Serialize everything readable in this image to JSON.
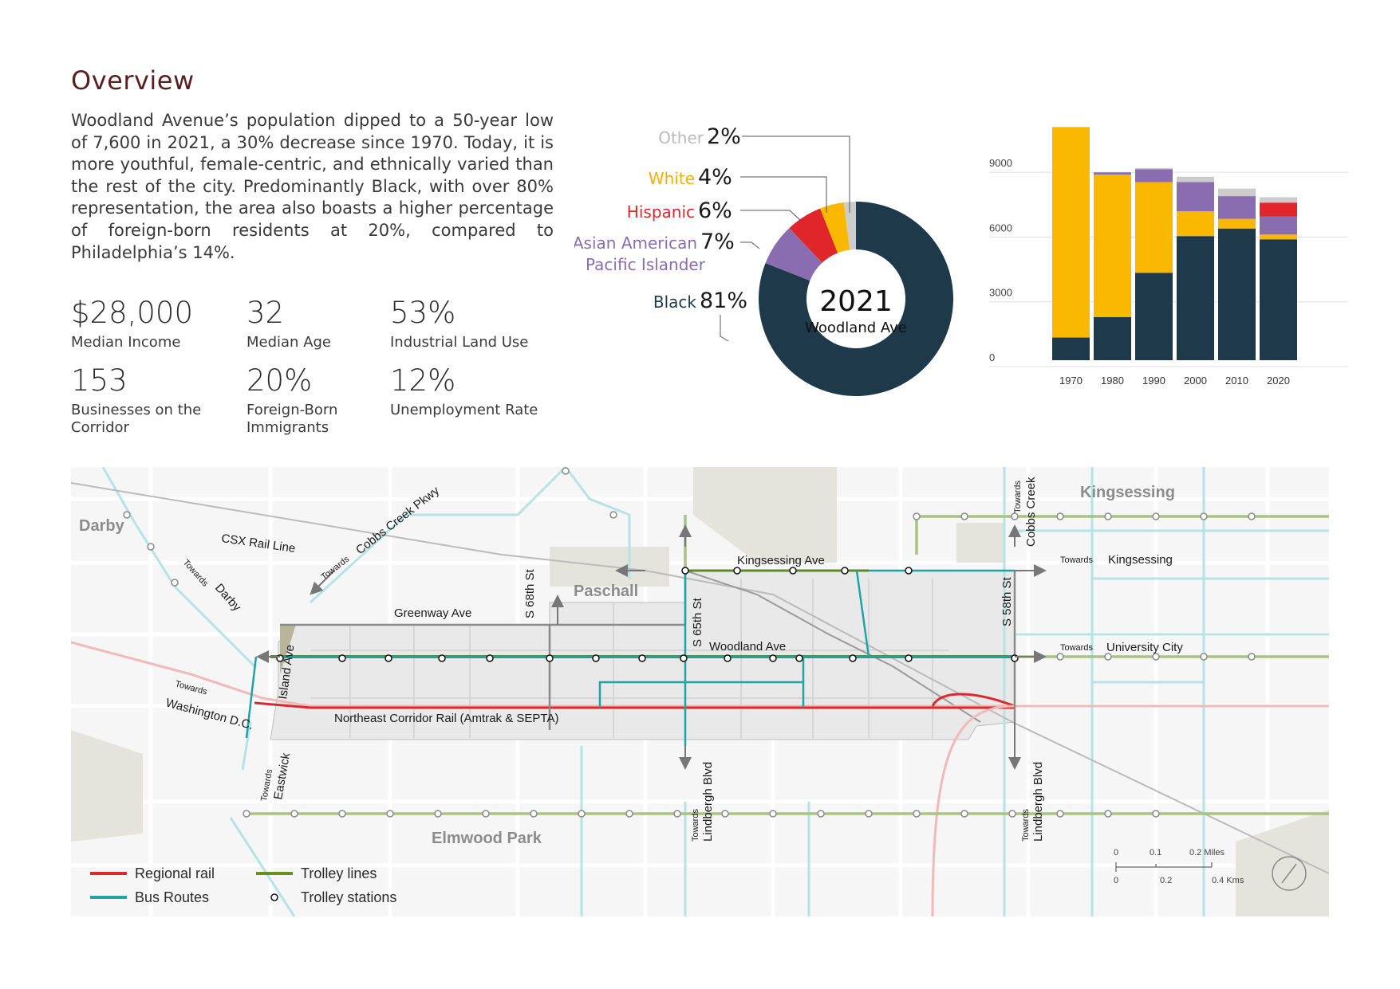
{
  "overview": {
    "title": "Overview",
    "body": "Woodland Avenue’s population dipped to a 50-year low of 7,600 in 2021, a 30% decrease since 1970. Today, it is more youthful, female-centric, and ethnically varied than the rest of the city. Predominantly Black, with over 80% representation, the area also boasts a higher percentage of foreign-born residents at 20%, compared to Philadelphia’s 14%."
  },
  "stats": [
    {
      "value": "$28,000",
      "label": "Median Income"
    },
    {
      "value": "32",
      "label": "Median Age"
    },
    {
      "value": "53%",
      "label": "Industrial Land Use"
    },
    {
      "value": "153",
      "label": "Businesses on the Corridor"
    },
    {
      "value": "20%",
      "label": "Foreign-Born Immigrants"
    },
    {
      "value": "12%",
      "label": "Unemployment Rate"
    }
  ],
  "donut": {
    "center_year": "2021",
    "center_label": "Woodland Ave",
    "slices": [
      {
        "name": "Black",
        "pct_label": "81%",
        "value": 81,
        "color": "#1e3a4a"
      },
      {
        "name": "Asian American Pacific Islander",
        "name_line1": "Asian American",
        "name_line2": "Pacific Islander",
        "pct_label": "7%",
        "value": 7,
        "color": "#8a6db0"
      },
      {
        "name": "Hispanic",
        "pct_label": "6%",
        "value": 6,
        "color": "#e0262b"
      },
      {
        "name": "White",
        "pct_label": "4%",
        "value": 4,
        "color": "#fbb800"
      },
      {
        "name": "Other",
        "pct_label": "2%",
        "value": 2,
        "color": "#cccccc"
      }
    ]
  },
  "chart_data": {
    "type": "bar",
    "stacked": true,
    "categories": [
      "1970",
      "1980",
      "1990",
      "2000",
      "2010",
      "2020"
    ],
    "yticks": [
      "0",
      "3000",
      "6000",
      "9000"
    ],
    "ylim": [
      0,
      11000
    ],
    "grid": true,
    "series": [
      {
        "key": "black",
        "values": [
          1050,
          2000,
          4050,
          5750,
          6100,
          5600
        ],
        "color": "#1e3a4a"
      },
      {
        "key": "white",
        "values": [
          9750,
          6600,
          4200,
          1150,
          450,
          220
        ],
        "color": "#fbb800"
      },
      {
        "key": "aapi",
        "values": [
          0,
          100,
          600,
          1350,
          1050,
          830
        ],
        "color": "#8a6db0"
      },
      {
        "key": "hispanic",
        "values": [
          0,
          0,
          0,
          0,
          0,
          650
        ],
        "color": "#e0262b"
      },
      {
        "key": "other",
        "values": [
          0,
          0,
          50,
          250,
          350,
          250
        ],
        "color": "#cccccc"
      }
    ]
  },
  "map": {
    "neighborhoods": [
      "Darby",
      "Kingsessing",
      "Paschall",
      "Elmwood Park"
    ],
    "streets": {
      "greenway": "Greenway Ave",
      "woodland": "Woodland Ave",
      "kingsessing_ave": "Kingsessing Ave",
      "s68": "S 68th St",
      "s65": "S 65th St",
      "s58": "S 58th St",
      "island": "Island Ave",
      "csx": "CSX Rail Line",
      "nec": "Northeast Corridor Rail (Amtrak & SEPTA)"
    },
    "directions": {
      "cobbs_pkwy_towards": "Towards",
      "cobbs_pkwy": "Cobbs Creek Pkwy",
      "darby_towards": "Towards",
      "darby": "Darby",
      "wdc_towards": "Towards",
      "wdc": "Washington D.C.",
      "eastwick_towards": "Towards",
      "eastwick": "Eastwick",
      "lindbergh_towards": "Towards",
      "lindbergh": "Lindbergh Blvd",
      "cobbs_creek_towards": "Towards",
      "cobbs_creek": "Cobbs Creek",
      "kingsessing_towards": "Towards",
      "kingsessing": "Kingsessing",
      "univ_towards": "Towards",
      "univ": "University City"
    },
    "legend": {
      "regional_rail": "Regional rail",
      "bus_routes": "Bus Routes",
      "trolley_lines": "Trolley lines",
      "trolley_stations": "Trolley stations"
    },
    "scale": {
      "miles_ticks": [
        "0",
        "0.1",
        "0.2 Miles"
      ],
      "km_ticks": [
        "0",
        "0.2",
        "0.4 Kms"
      ]
    },
    "colors": {
      "regional_rail": "#d92b2b",
      "bus": "#1ea3a8",
      "trolley": "#6b8e23",
      "study_area": "#ebebeb"
    }
  }
}
